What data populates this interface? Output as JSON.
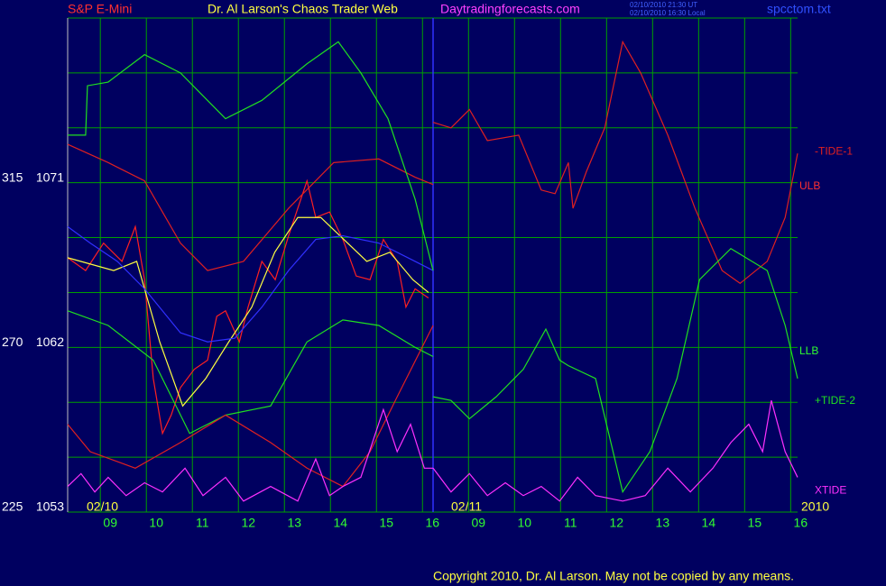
{
  "header": {
    "symbol": "S&P E-Mini",
    "title": "Dr. Al Larson's Chaos Trader Web",
    "site": "Daytradingforecasts.com",
    "time_ut": "02/10/2010 21:30 UT",
    "time_local": "02/10/2010 16:30 Local",
    "file": "spcctom.txt"
  },
  "copyright": "Copyright 2010, Dr. Al Larson. May not be copied by any means.",
  "chart_data": {
    "type": "line",
    "date_labels": [
      "02/10",
      "02/11",
      "2010"
    ],
    "annotations": [
      "ULB",
      "LLB"
    ],
    "xlim": [
      0,
      15.86
    ],
    "xticks": [
      {
        "value": 0.71,
        "label": "09"
      },
      {
        "value": 1.71,
        "label": "10"
      },
      {
        "value": 2.71,
        "label": "11"
      },
      {
        "value": 3.71,
        "label": "12"
      },
      {
        "value": 4.71,
        "label": "13"
      },
      {
        "value": 5.71,
        "label": "14"
      },
      {
        "value": 6.71,
        "label": "15"
      },
      {
        "value": 7.71,
        "label": "16"
      },
      {
        "value": 8.71,
        "label": "09"
      },
      {
        "value": 9.71,
        "label": "10"
      },
      {
        "value": 10.71,
        "label": "11"
      },
      {
        "value": 11.71,
        "label": "12"
      },
      {
        "value": 12.71,
        "label": "13"
      },
      {
        "value": 13.71,
        "label": "14"
      },
      {
        "value": 14.71,
        "label": "15"
      },
      {
        "value": 15.71,
        "label": "16"
      }
    ],
    "ylim": [
      1053,
      1080
    ],
    "yticks": [
      1053,
      1062,
      1071
    ],
    "minor_yticks": [
      1056,
      1059,
      1065,
      1068,
      1074,
      1077,
      1080
    ],
    "y2lim": [
      225,
      360
    ],
    "y2ticks": [
      225,
      270,
      315
    ],
    "grid": true,
    "series": [
      {
        "color": "#ff2020",
        "x": [
          0,
          0.39,
          0.78,
          1.18,
          1.47,
          1.67,
          1.86,
          2.06,
          2.25,
          2.45,
          2.75,
          3.04,
          3.24,
          3.43,
          3.73,
          3.92,
          4.22,
          4.51,
          4.8,
          5.0,
          5.2,
          5.39,
          5.69,
          5.98,
          6.27,
          6.57,
          6.86,
          7.16,
          7.35,
          7.55,
          7.84
        ],
        "values": [
          1066.9,
          1066.2,
          1067.7,
          1066.7,
          1068.6,
          1065.7,
          1060.3,
          1057.3,
          1058.3,
          1059.8,
          1060.8,
          1061.3,
          1063.7,
          1064.0,
          1062.3,
          1064.2,
          1066.7,
          1065.7,
          1068.1,
          1069.6,
          1071.1,
          1069.1,
          1069.4,
          1067.9,
          1065.9,
          1065.7,
          1067.9,
          1066.7,
          1064.2,
          1065.2,
          1064.7
        ]
      },
      {
        "color": "#ffff40",
        "x": [
          0,
          1,
          1.5,
          2,
          2.5,
          3,
          3.5,
          4,
          4.5,
          5,
          5.5,
          6,
          6.5,
          7,
          7.5,
          7.84
        ],
        "values": [
          1066.9,
          1066.2,
          1066.7,
          1062.3,
          1058.8,
          1060.3,
          1062.3,
          1064.2,
          1067.2,
          1069.1,
          1069.1,
          1067.9,
          1066.7,
          1067.2,
          1065.7,
          1065.0
        ]
      },
      {
        "color": "#3030ff",
        "x": [
          0,
          0.49,
          1.08,
          1.67,
          2.45,
          3.04,
          3.63,
          4.22,
          4.8,
          5.39,
          5.98,
          6.76,
          7.55,
          7.94
        ],
        "values": [
          1068.6,
          1067.7,
          1066.7,
          1065.2,
          1062.8,
          1062.3,
          1062.5,
          1064.2,
          1066.2,
          1067.9,
          1068.1,
          1067.7,
          1066.7,
          1066.2
        ]
      },
      {
        "color": "#e02020",
        "x": [
          0,
          0.88,
          1.67,
          2.45,
          3.04,
          3.82,
          4.8,
          5.78,
          6.76,
          7.55,
          7.94
        ],
        "values": [
          1073.1,
          1072.1,
          1071.1,
          1067.7,
          1066.2,
          1066.7,
          1069.6,
          1072.1,
          1072.3,
          1071.3,
          1070.9
        ]
      },
      {
        "color": "#20e020",
        "x": [
          0,
          0.39,
          0.43,
          0.88,
          1.67,
          2.45,
          3.43,
          4.22,
          5.2,
          5.88,
          6.37,
          6.96,
          7.55,
          7.94
        ],
        "values": [
          1073.6,
          1073.6,
          1076.3,
          1076.5,
          1078.0,
          1077.0,
          1074.5,
          1075.5,
          1077.5,
          1078.7,
          1077.0,
          1074.5,
          1070.1,
          1066.2
        ]
      },
      {
        "color": "#20e020",
        "x": [
          0,
          0.88,
          1.86,
          2.65,
          3.43,
          4.41,
          5.2,
          5.98,
          6.76,
          7.55,
          7.94
        ],
        "values": [
          1064.0,
          1063.2,
          1061.3,
          1057.3,
          1058.3,
          1058.8,
          1062.3,
          1063.5,
          1063.2,
          1062.0,
          1061.5
        ]
      },
      {
        "color": "#e02020",
        "x": [
          0,
          0.49,
          1.47,
          2.45,
          3.43,
          4.41,
          5.2,
          5.98,
          6.57,
          7.16,
          7.94
        ],
        "values": [
          1057.8,
          1056.3,
          1055.4,
          1056.8,
          1058.3,
          1056.8,
          1055.4,
          1054.4,
          1056.3,
          1059.3,
          1063.2
        ]
      },
      {
        "color": "#ff30ff",
        "x": [
          0,
          0.29,
          0.59,
          0.88,
          1.27,
          1.67,
          2.06,
          2.55,
          2.94,
          3.43,
          3.82,
          4.41,
          5.0,
          5.39,
          5.69,
          5.98,
          6.37,
          6.86,
          7.16,
          7.45,
          7.75,
          7.94
        ],
        "values": [
          1054.4,
          1055.1,
          1054.1,
          1054.9,
          1053.9,
          1054.6,
          1054.1,
          1055.4,
          1053.9,
          1054.9,
          1053.6,
          1054.4,
          1053.6,
          1055.9,
          1053.9,
          1054.4,
          1054.9,
          1058.6,
          1056.3,
          1057.8,
          1055.4,
          1055.4
        ]
      },
      {
        "name": "-TIDE-1",
        "color": "#e02020",
        "x": [
          7.94,
          8.33,
          8.73,
          9.12,
          9.8,
          10.29,
          10.59,
          10.88,
          10.98,
          11.27,
          11.67,
          12.06,
          12.45,
          13.04,
          13.63,
          14.22,
          14.61,
          15.2,
          15.59,
          15.86
        ],
        "values": [
          1074.3,
          1074.0,
          1075.0,
          1073.3,
          1073.6,
          1070.6,
          1070.4,
          1072.1,
          1069.6,
          1071.6,
          1074.0,
          1078.7,
          1077.0,
          1073.6,
          1069.6,
          1066.2,
          1065.5,
          1066.7,
          1069.1,
          1072.6
        ]
      },
      {
        "name": "+TIDE-2",
        "color": "#20e020",
        "x": [
          7.94,
          8.33,
          8.73,
          9.31,
          9.9,
          10.39,
          10.69,
          10.88,
          11.47,
          12.06,
          12.65,
          13.24,
          13.73,
          14.41,
          15.2,
          15.59,
          15.86
        ],
        "values": [
          1059.3,
          1059.1,
          1058.1,
          1059.3,
          1060.8,
          1063.0,
          1061.3,
          1061.0,
          1060.3,
          1054.1,
          1056.3,
          1060.3,
          1065.7,
          1067.4,
          1066.2,
          1063.2,
          1060.3
        ]
      },
      {
        "name": "XTIDE",
        "color": "#ff30ff",
        "x": [
          7.94,
          8.33,
          8.73,
          9.12,
          9.51,
          9.9,
          10.29,
          10.69,
          11.08,
          11.47,
          12.06,
          12.55,
          13.04,
          13.53,
          14.02,
          14.41,
          14.8,
          15.1,
          15.29,
          15.59,
          15.86
        ],
        "values": [
          1055.4,
          1054.1,
          1055.1,
          1053.9,
          1054.6,
          1053.9,
          1054.4,
          1053.6,
          1054.9,
          1053.9,
          1053.6,
          1053.9,
          1055.4,
          1054.1,
          1055.4,
          1056.8,
          1057.8,
          1056.3,
          1059.1,
          1056.3,
          1054.9
        ]
      }
    ]
  }
}
